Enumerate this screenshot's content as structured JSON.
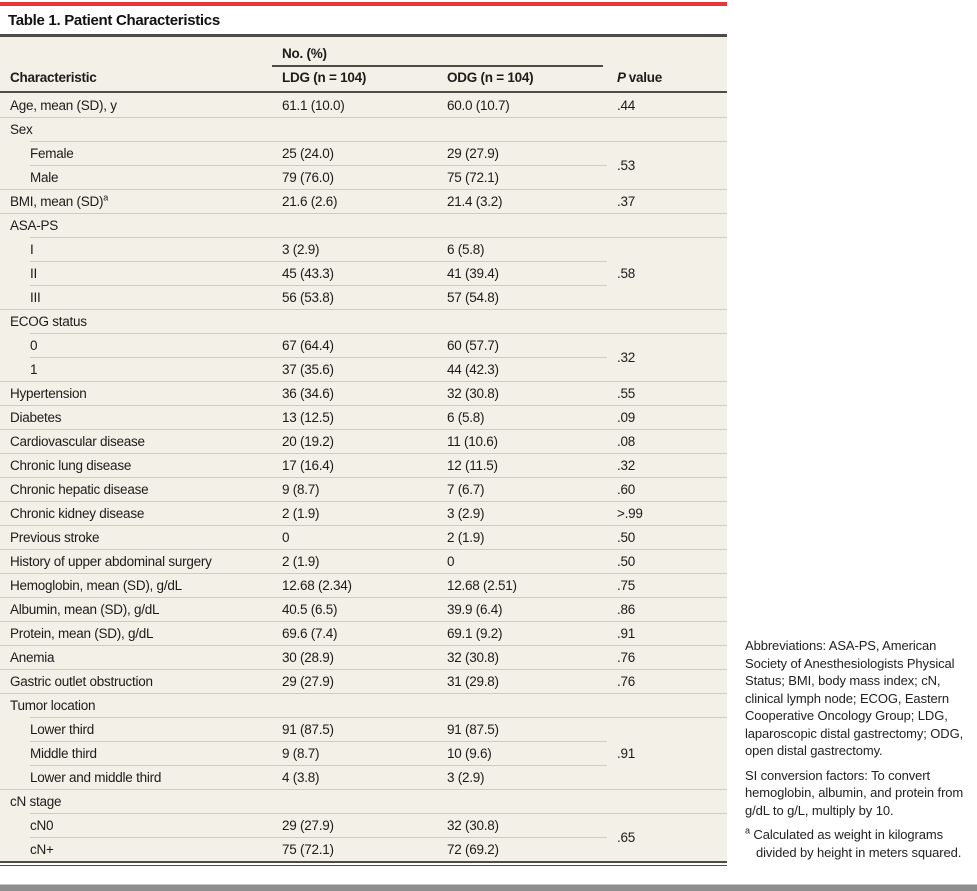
{
  "table": {
    "title": "Table 1. Patient Characteristics",
    "no_pct_header": "No. (%)",
    "columns": [
      "Characteristic",
      "LDG (n = 104)",
      "ODG (n = 104)"
    ],
    "p_header": {
      "italic": "P",
      "rest": "value"
    },
    "rows": [
      {
        "label": "Age, mean (SD), y",
        "ldg": "61.1 (10.0)",
        "odg": "60.0 (10.7)",
        "p": ".44"
      },
      {
        "label": "Sex",
        "group": true
      },
      {
        "label": "Female",
        "indent": 1,
        "ldg": "25 (24.0)",
        "odg": "29 (27.9)",
        "p": ".53",
        "p_span": 2
      },
      {
        "label": "Male",
        "indent": 1,
        "ldg": "79 (76.0)",
        "odg": "75 (72.1)"
      },
      {
        "label": "BMI, mean (SD)",
        "sup": "a",
        "ldg": "21.6 (2.6)",
        "odg": "21.4 (3.2)",
        "p": ".37"
      },
      {
        "label": "ASA-PS",
        "group": true
      },
      {
        "label": "I",
        "indent": 1,
        "ldg": "3 (2.9)",
        "odg": "6 (5.8)",
        "p": ".58",
        "p_span": 3
      },
      {
        "label": "II",
        "indent": 1,
        "ldg": "45 (43.3)",
        "odg": "41 (39.4)"
      },
      {
        "label": "III",
        "indent": 1,
        "ldg": "56 (53.8)",
        "odg": "57 (54.8)"
      },
      {
        "label": "ECOG status",
        "group": true
      },
      {
        "label": "0",
        "indent": 1,
        "ldg": "67 (64.4)",
        "odg": "60 (57.7)",
        "p": ".32",
        "p_span": 2
      },
      {
        "label": "1",
        "indent": 1,
        "ldg": "37 (35.6)",
        "odg": "44 (42.3)"
      },
      {
        "label": "Hypertension",
        "ldg": "36 (34.6)",
        "odg": "32 (30.8)",
        "p": ".55"
      },
      {
        "label": "Diabetes",
        "ldg": "13 (12.5)",
        "odg": "6 (5.8)",
        "p": ".09"
      },
      {
        "label": "Cardiovascular disease",
        "ldg": "20 (19.2)",
        "odg": "11 (10.6)",
        "p": ".08"
      },
      {
        "label": "Chronic lung disease",
        "ldg": "17 (16.4)",
        "odg": "12 (11.5)",
        "p": ".32"
      },
      {
        "label": "Chronic hepatic disease",
        "ldg": "9 (8.7)",
        "odg": "7 (6.7)",
        "p": ".60"
      },
      {
        "label": "Chronic kidney disease",
        "ldg": "2 (1.9)",
        "odg": "3 (2.9)",
        "p": ">.99"
      },
      {
        "label": "Previous stroke",
        "ldg": "0",
        "odg": "2 (1.9)",
        "p": ".50"
      },
      {
        "label": "History of upper abdominal surgery",
        "ldg": "2 (1.9)",
        "odg": "0",
        "p": ".50"
      },
      {
        "label": "Hemoglobin, mean (SD), g/dL",
        "ldg": "12.68 (2.34)",
        "odg": "12.68 (2.51)",
        "p": ".75"
      },
      {
        "label": "Albumin, mean (SD), g/dL",
        "ldg": "40.5 (6.5)",
        "odg": "39.9 (6.4)",
        "p": ".86"
      },
      {
        "label": "Protein, mean (SD), g/dL",
        "ldg": "69.6 (7.4)",
        "odg": "69.1 (9.2)",
        "p": ".91"
      },
      {
        "label": "Anemia",
        "ldg": "30 (28.9)",
        "odg": "32 (30.8)",
        "p": ".76"
      },
      {
        "label": "Gastric outlet obstruction",
        "ldg": "29 (27.9)",
        "odg": "31 (29.8)",
        "p": ".76"
      },
      {
        "label": "Tumor location",
        "group": true
      },
      {
        "label": "Lower third",
        "indent": 1,
        "ldg": "91 (87.5)",
        "odg": "91 (87.5)",
        "p": ".91",
        "p_span": 3
      },
      {
        "label": "Middle third",
        "indent": 1,
        "ldg": "9 (8.7)",
        "odg": "10 (9.6)"
      },
      {
        "label": "Lower and middle third",
        "indent": 1,
        "ldg": "4 (3.8)",
        "odg": "3 (2.9)"
      },
      {
        "label": "cN stage",
        "group": true
      },
      {
        "label": "cN0",
        "indent": 1,
        "ldg": "29 (27.9)",
        "odg": "32 (30.8)",
        "p": ".65",
        "p_span": 2
      },
      {
        "label": "cN+",
        "indent": 1,
        "ldg": "75 (72.1)",
        "odg": "72 (69.2)"
      }
    ]
  },
  "notes": {
    "abbreviations": "Abbreviations: ASA-PS, American Society of Anesthesiologists Physical Status; BMI, body mass index; cN, clinical lymph node; ECOG, Eastern Cooperative Oncology Group; LDG, laparoscopic distal gastrectomy; ODG, open distal gastrectomy.",
    "si_conversion": "SI conversion factors: To convert hemoglobin, albumin, and protein from g/dL to g/L, multiply by 10.",
    "footnote_marker": "a",
    "footnote": "Calculated as weight in kilograms divided by height in meters squared."
  },
  "colors": {
    "accent_red": "#e8353c",
    "table_background": "#f2f0e7",
    "rule_dark": "#4d4c46",
    "row_separator": "#ceccc1",
    "text": "#1d1c1a",
    "page_bottom_bar": "#8e8e8e"
  }
}
